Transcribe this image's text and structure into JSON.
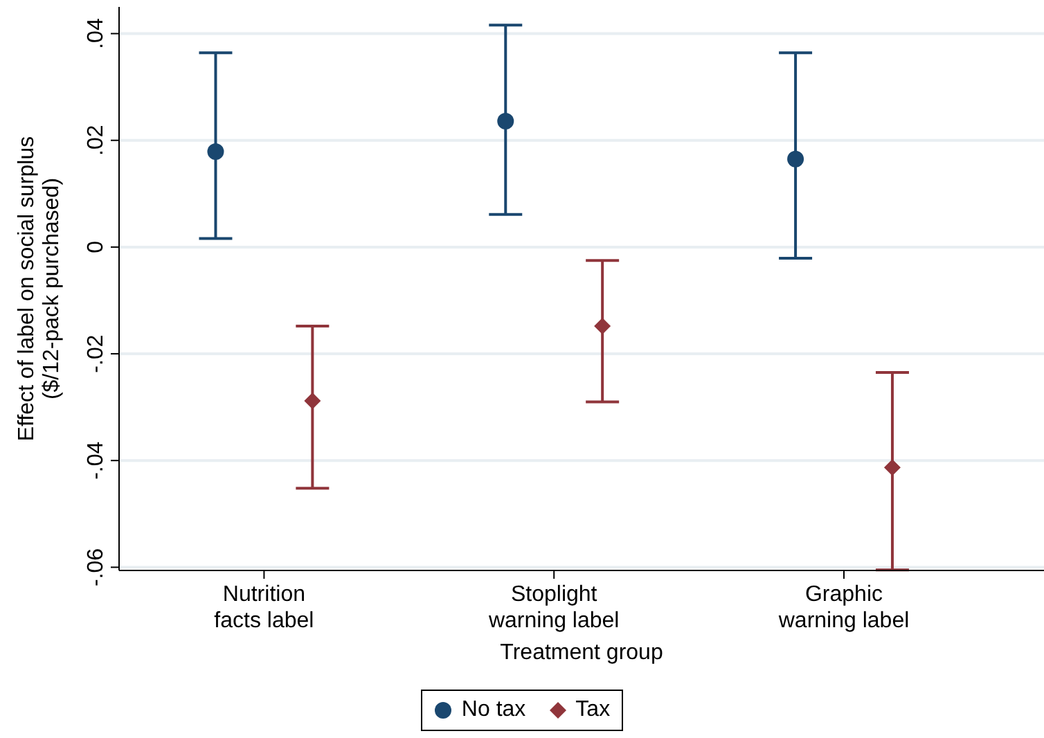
{
  "chart_data": {
    "type": "scatter",
    "xlabel": "Treatment group",
    "ylabel": "Effect of label on social surplus\n($/12-pack purchased)",
    "categories": [
      "Nutrition facts label",
      "Stoplight warning label",
      "Graphic warning label"
    ],
    "series": [
      {
        "name": "No tax",
        "color": "#1a476f",
        "marker": "circle",
        "values": [
          0.0179,
          0.0236,
          0.0165
        ],
        "errors": [
          [
            0.0016,
            0.0364
          ],
          [
            0.0061,
            0.0416
          ],
          [
            -0.0021,
            0.0364
          ]
        ]
      },
      {
        "name": "Tax",
        "color": "#90353b",
        "marker": "diamond",
        "values": [
          -0.0288,
          -0.0148,
          -0.0413
        ],
        "errors": [
          [
            -0.0452,
            -0.0148
          ],
          [
            -0.029,
            -0.0025
          ],
          [
            -0.0605,
            -0.0235
          ]
        ]
      }
    ],
    "ylim": [
      -0.0606,
      0.045
    ],
    "yticks": [
      {
        "value": -0.06,
        "label": "-.06"
      },
      {
        "value": -0.04,
        "label": "-.04"
      },
      {
        "value": -0.02,
        "label": "-.02"
      },
      {
        "value": 0,
        "label": "0"
      },
      {
        "value": 0.02,
        "label": ".02"
      },
      {
        "value": 0.04,
        "label": ".04"
      }
    ],
    "grid": "y",
    "legend": "bottom"
  }
}
